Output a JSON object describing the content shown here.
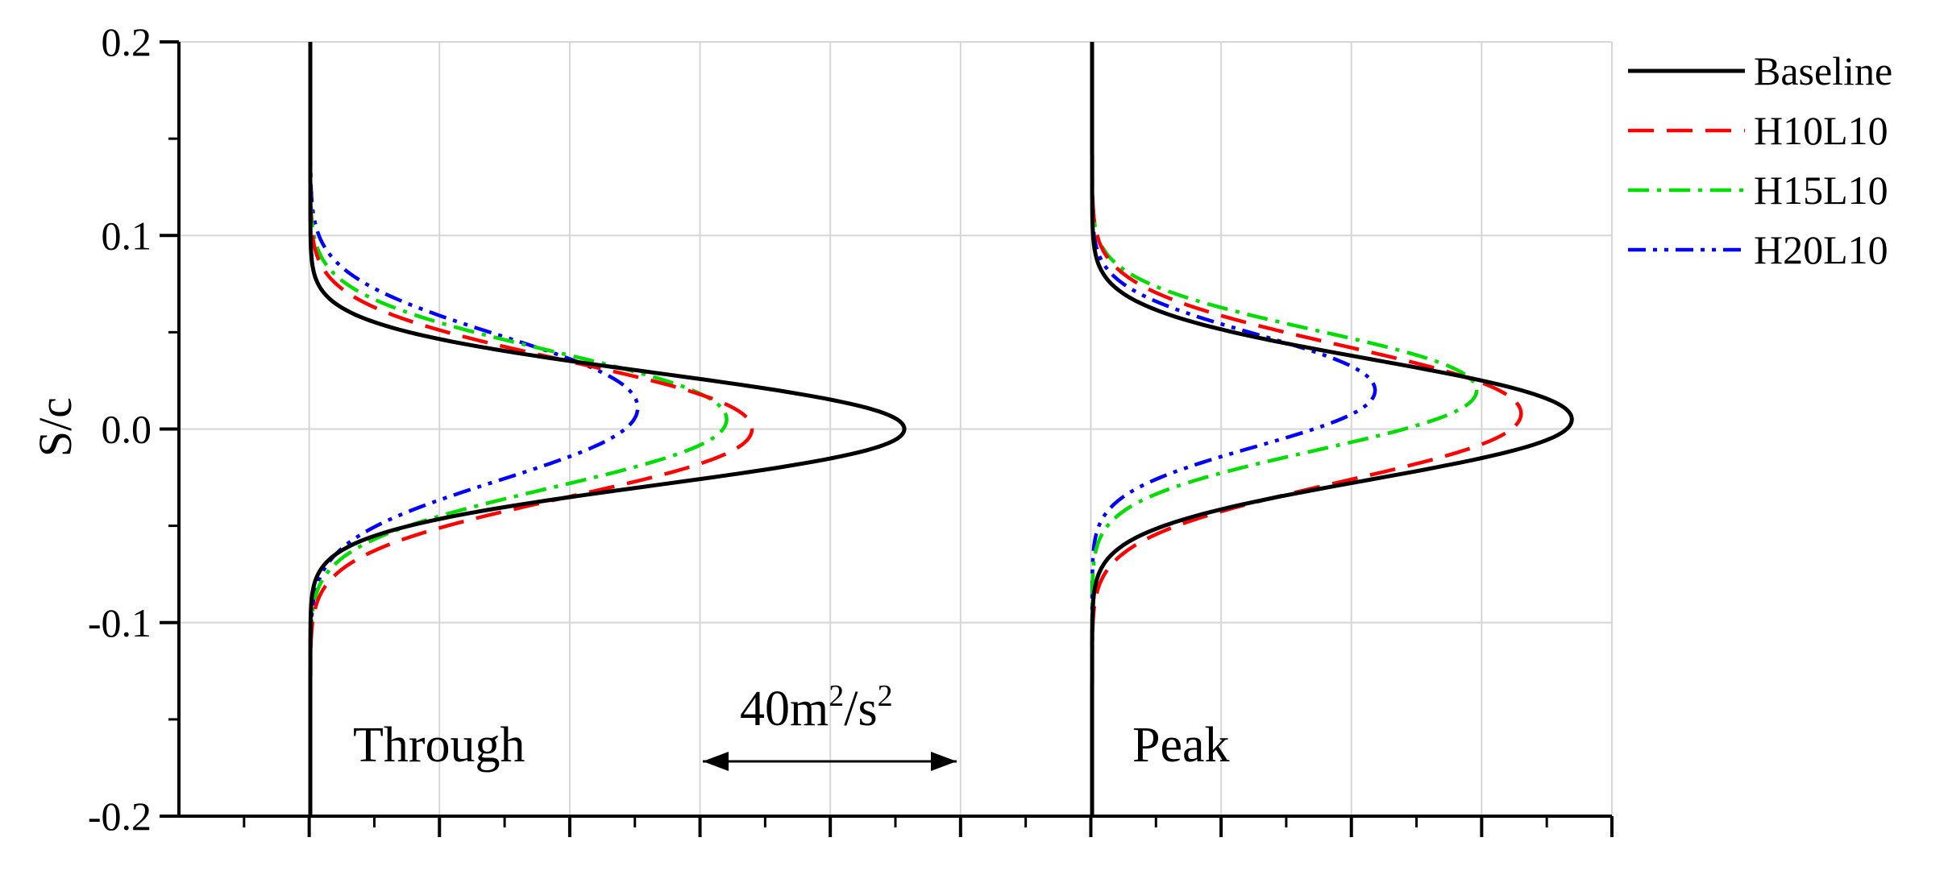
{
  "chart_data": {
    "type": "line",
    "title": "",
    "ylabel": "S/c",
    "xlabel": "",
    "ylim": [
      -0.2,
      0.2
    ],
    "yticks": [
      "0.2",
      "0.1",
      "0.0",
      "-0.1",
      "-0.2"
    ],
    "grid": true,
    "legend_position": "top-right",
    "legend": [
      "Baseline",
      "H10L10",
      "H15L10",
      "H20L10"
    ],
    "colors": {
      "Baseline": "#000000",
      "H10L10": "#ff0000",
      "H15L10": "#00dd00",
      "H20L10": "#0000ff"
    },
    "annotations": {
      "through": "Through",
      "peak": "Peak",
      "scale_value": "40m",
      "scale_sup1": "2",
      "scale_mid": "/s",
      "scale_sup2": "2"
    },
    "scale_bar_value": 40,
    "scale_bar_units": "m^2/s^2",
    "profiles": [
      {
        "name": "Through",
        "series": [
          {
            "name": "Baseline",
            "peak": 93,
            "center": 0.0,
            "width": 0.028,
            "dash": "none"
          },
          {
            "name": "H10L10",
            "peak": 69,
            "center": 0.0,
            "width": 0.034,
            "dash": "32 16"
          },
          {
            "name": "H15L10",
            "peak": 65,
            "center": 0.005,
            "width": 0.034,
            "dash": "26 10 5 10"
          },
          {
            "name": "H20L10",
            "peak": 51,
            "center": 0.011,
            "width": 0.036,
            "dash": "22 9 5 9 5 9"
          }
        ]
      },
      {
        "name": "Peak",
        "series": [
          {
            "name": "Baseline",
            "peak": 75,
            "center": 0.005,
            "width": 0.03,
            "dash": "none"
          },
          {
            "name": "H10L10",
            "peak": 67,
            "center": 0.008,
            "width": 0.034,
            "dash": "32 16"
          },
          {
            "name": "H15L10",
            "peak": 60,
            "center": 0.02,
            "width": 0.03,
            "dash": "26 10 5 10"
          },
          {
            "name": "H20L10",
            "peak": 44,
            "center": 0.02,
            "width": 0.028,
            "dash": "22 9 5 9 5 9"
          }
        ]
      }
    ]
  }
}
